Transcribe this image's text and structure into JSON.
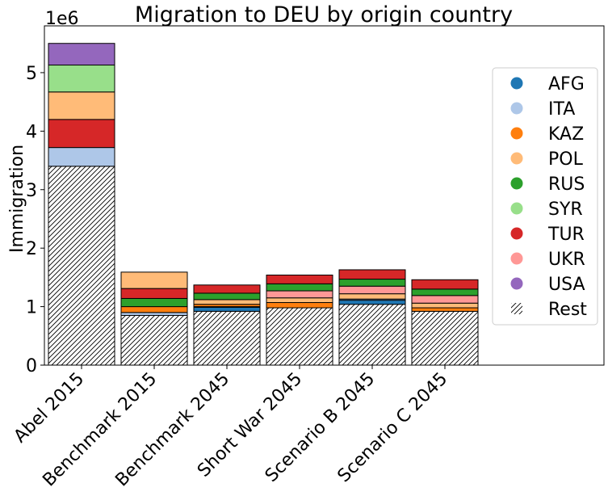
{
  "chart_data": {
    "type": "bar",
    "stacked": true,
    "title": "Migration to DEU by origin country",
    "ylabel": "Immigration",
    "xlabel": "",
    "y_multiplier_label": "1e6",
    "ylim": [
      0,
      5.8
    ],
    "yticks": [
      0,
      1,
      2,
      3,
      4,
      5
    ],
    "grid": false,
    "legend_position": "right",
    "categories": [
      "Abel 2015",
      "Benchmark 2015",
      "Benchmark 2045",
      "Short War 2045",
      "Scenario B 2045",
      "Scenario C 2045"
    ],
    "series": [
      {
        "name": "Rest",
        "color": "#ffffff",
        "hatch": true,
        "values": [
          3.4,
          0.85,
          0.92,
          0.98,
          1.04,
          0.92
        ]
      },
      {
        "name": "AFG",
        "color": "#1f77b4",
        "values": [
          0,
          0,
          0.07,
          0,
          0.07,
          0
        ]
      },
      {
        "name": "ITA",
        "color": "#aec7e8",
        "values": [
          0.32,
          0.05,
          0.01,
          0,
          0.02,
          0
        ]
      },
      {
        "name": "KAZ",
        "color": "#ff7f0e",
        "values": [
          0,
          0.1,
          0.04,
          0.09,
          0,
          0.06
        ]
      },
      {
        "name": "POL",
        "color": "#ffbb78",
        "values": [
          0,
          0,
          0.08,
          0.08,
          0.09,
          0.08
        ]
      },
      {
        "name": "UKR",
        "color": "#ff9896",
        "values": [
          0,
          0,
          0,
          0.12,
          0.13,
          0.13
        ]
      },
      {
        "name": "RUS",
        "color": "#2ca02c",
        "values": [
          0,
          0.14,
          0.11,
          0.12,
          0.12,
          0.11
        ]
      },
      {
        "name": "TUR",
        "color": "#d62728",
        "values": [
          0.48,
          0.17,
          0.14,
          0.15,
          0.16,
          0.16
        ]
      },
      {
        "name": "POL",
        "color": "#ffbb78",
        "values": [
          0.47,
          0.28,
          0,
          0,
          0,
          0
        ]
      },
      {
        "name": "SYR",
        "color": "#98df8a",
        "values": [
          0.46,
          0,
          0,
          0,
          0,
          0
        ]
      },
      {
        "name": "USA",
        "color": "#9467bd",
        "values": [
          0.37,
          0,
          0,
          0,
          0,
          0
        ]
      }
    ],
    "stack_order_note_abel": [
      "Rest",
      "ITA",
      "USA",
      "POL",
      "SYR",
      "TUR"
    ],
    "legend": [
      {
        "label": "AFG",
        "color": "#1f77b4"
      },
      {
        "label": "ITA",
        "color": "#aec7e8"
      },
      {
        "label": "KAZ",
        "color": "#ff7f0e"
      },
      {
        "label": "POL",
        "color": "#ffbb78"
      },
      {
        "label": "RUS",
        "color": "#2ca02c"
      },
      {
        "label": "SYR",
        "color": "#98df8a"
      },
      {
        "label": "TUR",
        "color": "#d62728"
      },
      {
        "label": "UKR",
        "color": "#ff9896"
      },
      {
        "label": "USA",
        "color": "#9467bd"
      },
      {
        "label": "Rest",
        "color": "#ffffff",
        "hatch": true
      }
    ]
  }
}
